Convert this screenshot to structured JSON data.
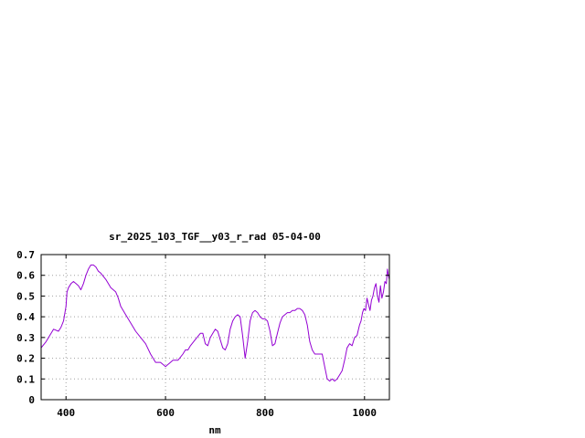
{
  "chart_data": {
    "type": "line",
    "title": "sr_2025_103_TGF__y03_r_rad 05-04-00",
    "xlabel": "nm",
    "ylabel": "",
    "xlim": [
      350,
      1050
    ],
    "ylim": [
      0,
      0.7
    ],
    "x_ticks": [
      400,
      600,
      800,
      1000
    ],
    "x_tick_labels": [
      "400",
      "600",
      "800",
      "1000"
    ],
    "y_ticks": [
      0,
      0.1,
      0.2,
      0.3,
      0.4,
      0.5,
      0.6,
      0.7
    ],
    "y_tick_labels": [
      "0",
      "0.1",
      "0.2",
      "0.3",
      "0.4",
      "0.5",
      "0.6",
      "0.7"
    ],
    "grid": true,
    "legend": "none",
    "line_color": "#9400d3",
    "series": [
      {
        "x": [
          350,
          360,
          370,
          375,
          385,
          390,
          395,
          400,
          402,
          405,
          410,
          415,
          420,
          425,
          430,
          435,
          440,
          445,
          450,
          455,
          460,
          465,
          470,
          480,
          490,
          500,
          505,
          510,
          520,
          530,
          540,
          550,
          560,
          570,
          580,
          590,
          595,
          600,
          605,
          610,
          615,
          625,
          635,
          640,
          645,
          650,
          660,
          670,
          675,
          680,
          685,
          690,
          695,
          700,
          705,
          710,
          715,
          720,
          725,
          730,
          735,
          740,
          745,
          750,
          755,
          760,
          765,
          770,
          775,
          780,
          785,
          790,
          795,
          800,
          805,
          810,
          815,
          820,
          825,
          830,
          835,
          840,
          845,
          850,
          855,
          860,
          865,
          870,
          875,
          880,
          885,
          890,
          895,
          900,
          905,
          910,
          915,
          920,
          925,
          930,
          935,
          940,
          945,
          950,
          955,
          960,
          965,
          970,
          975,
          980,
          985,
          990,
          993,
          996,
          999,
          1002,
          1005,
          1008,
          1011,
          1014,
          1017,
          1020,
          1023,
          1026,
          1029,
          1032,
          1035,
          1038,
          1041,
          1044,
          1046,
          1048,
          1050
        ],
        "y": [
          0.25,
          0.28,
          0.32,
          0.34,
          0.33,
          0.35,
          0.38,
          0.45,
          0.52,
          0.54,
          0.56,
          0.57,
          0.56,
          0.55,
          0.53,
          0.56,
          0.6,
          0.63,
          0.65,
          0.65,
          0.64,
          0.62,
          0.61,
          0.58,
          0.54,
          0.52,
          0.49,
          0.45,
          0.41,
          0.37,
          0.33,
          0.3,
          0.27,
          0.22,
          0.18,
          0.18,
          0.17,
          0.16,
          0.17,
          0.18,
          0.19,
          0.19,
          0.22,
          0.24,
          0.24,
          0.26,
          0.29,
          0.32,
          0.32,
          0.27,
          0.26,
          0.3,
          0.32,
          0.34,
          0.33,
          0.29,
          0.25,
          0.24,
          0.27,
          0.34,
          0.38,
          0.4,
          0.41,
          0.4,
          0.31,
          0.2,
          0.28,
          0.38,
          0.42,
          0.43,
          0.42,
          0.4,
          0.39,
          0.39,
          0.38,
          0.33,
          0.26,
          0.27,
          0.32,
          0.37,
          0.4,
          0.41,
          0.42,
          0.42,
          0.43,
          0.43,
          0.44,
          0.44,
          0.43,
          0.41,
          0.36,
          0.28,
          0.24,
          0.22,
          0.22,
          0.22,
          0.22,
          0.16,
          0.1,
          0.09,
          0.1,
          0.09,
          0.1,
          0.12,
          0.14,
          0.19,
          0.25,
          0.27,
          0.26,
          0.3,
          0.31,
          0.36,
          0.38,
          0.42,
          0.44,
          0.43,
          0.49,
          0.46,
          0.43,
          0.48,
          0.5,
          0.54,
          0.56,
          0.5,
          0.47,
          0.55,
          0.49,
          0.52,
          0.57,
          0.56,
          0.63,
          0.6,
          0.58
        ]
      }
    ]
  }
}
